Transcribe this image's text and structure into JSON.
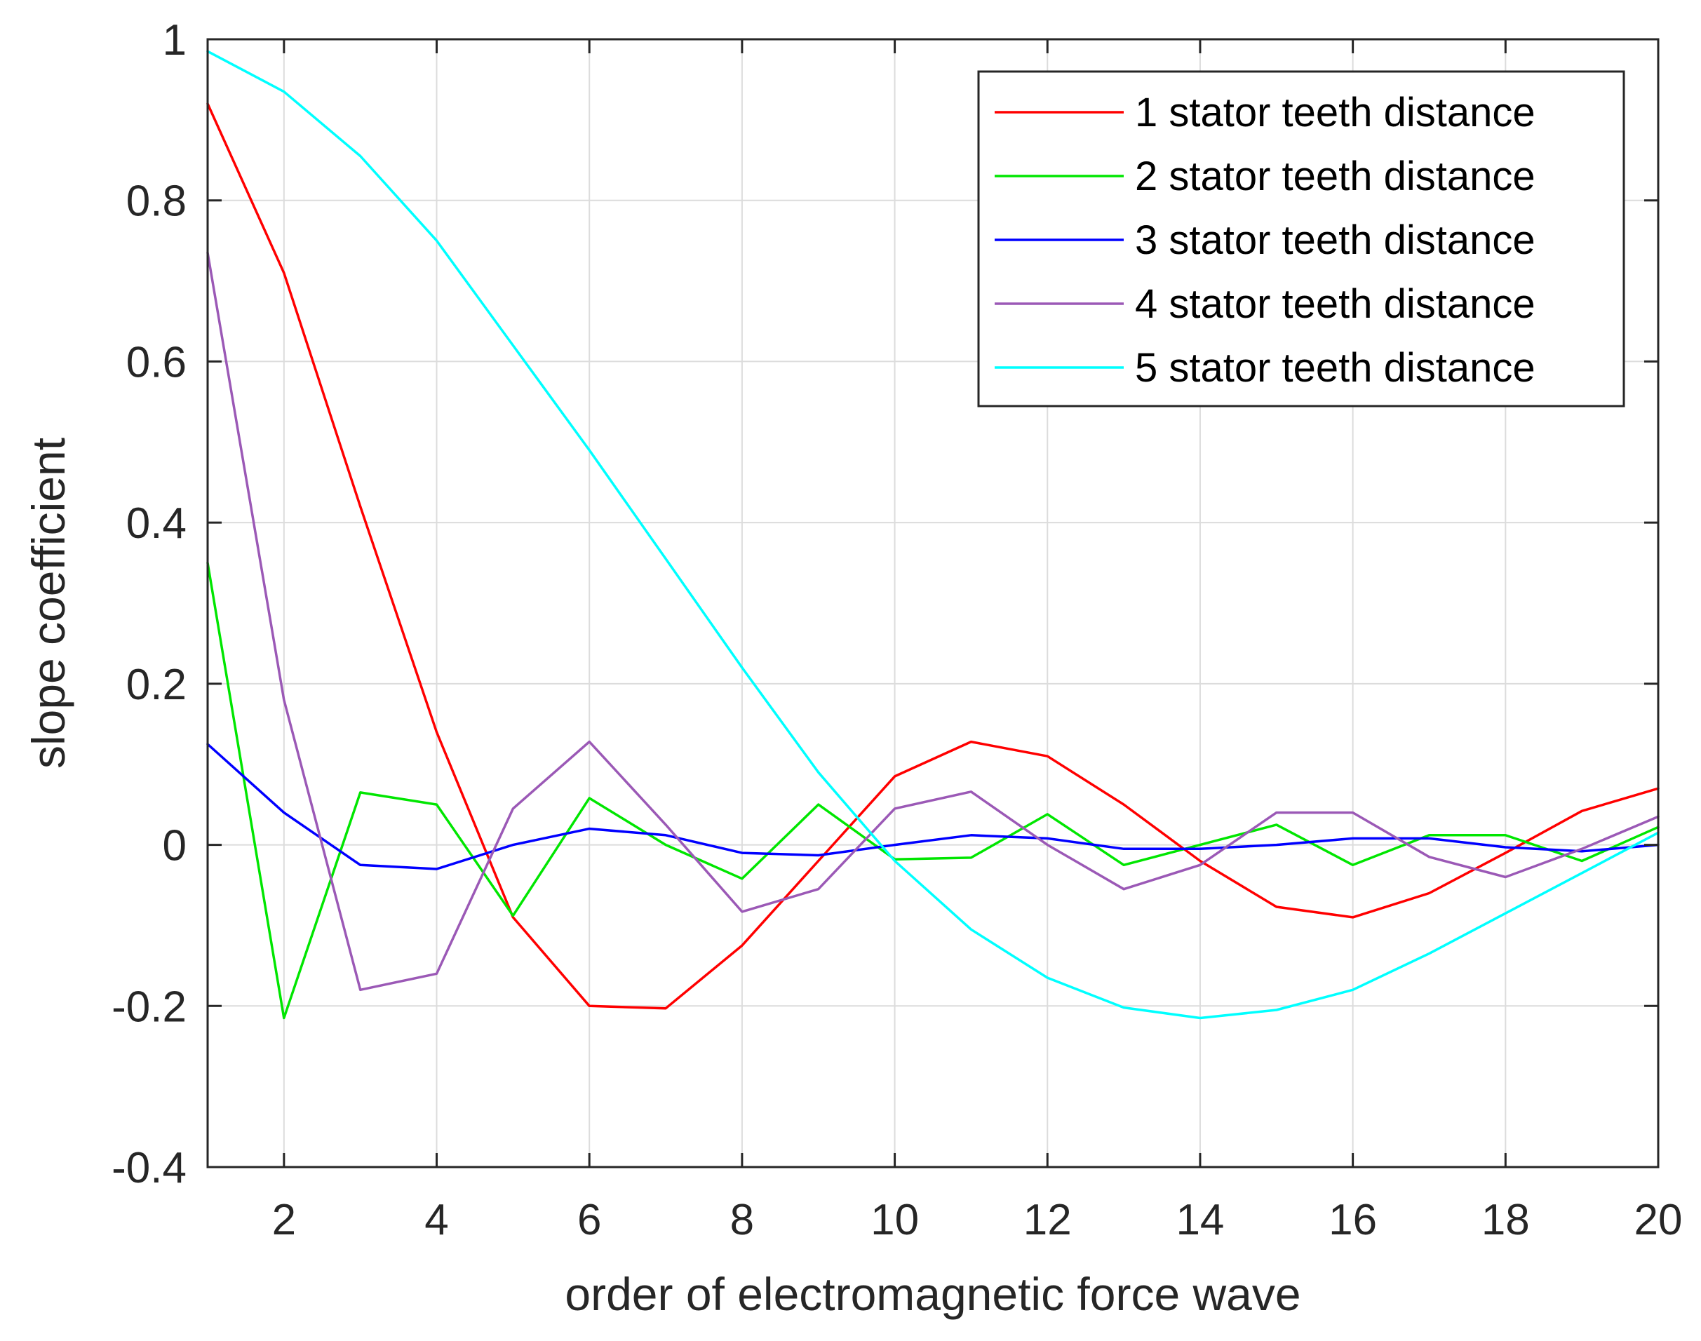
{
  "chart_data": {
    "type": "line",
    "title": "",
    "xlabel": "order of electromagnetic force wave",
    "ylabel": "slope coefficient",
    "xlim": [
      1,
      20
    ],
    "ylim": [
      -0.4,
      1
    ],
    "grid": true,
    "legend_position": "top-right",
    "xticks": [
      2,
      4,
      6,
      8,
      10,
      12,
      14,
      16,
      18,
      20
    ],
    "xtick_labels": [
      "2",
      "4",
      "6",
      "8",
      "10",
      "12",
      "14",
      "16",
      "18",
      "20"
    ],
    "yticks": [
      -0.4,
      -0.2,
      0,
      0.2,
      0.4,
      0.6,
      0.8,
      1
    ],
    "ytick_labels": [
      "-0.4",
      "-0.2",
      "0",
      "0.2",
      "0.4",
      "0.6",
      "0.8",
      "1"
    ],
    "x": [
      1,
      2,
      3,
      4,
      5,
      6,
      7,
      8,
      9,
      10,
      11,
      12,
      13,
      14,
      15,
      16,
      17,
      18,
      19,
      20
    ],
    "series": [
      {
        "name": "1 stator teeth distance",
        "color": "#ff0000",
        "values": [
          0.92,
          0.71,
          0.42,
          0.14,
          -0.09,
          -0.2,
          -0.203,
          -0.125,
          -0.02,
          0.085,
          0.128,
          0.11,
          0.05,
          -0.02,
          -0.077,
          -0.09,
          -0.06,
          -0.01,
          0.042,
          0.07
        ]
      },
      {
        "name": "2 stator teeth distance",
        "color": "#00e600",
        "values": [
          0.35,
          -0.215,
          0.065,
          0.05,
          -0.088,
          0.058,
          0.0,
          -0.042,
          0.05,
          -0.018,
          -0.016,
          0.038,
          -0.025,
          0.0,
          0.025,
          -0.025,
          0.012,
          0.012,
          -0.02,
          0.022
        ]
      },
      {
        "name": "3 stator teeth distance",
        "color": "#0000ff",
        "values": [
          0.125,
          0.04,
          -0.025,
          -0.03,
          0.0,
          0.02,
          0.012,
          -0.01,
          -0.013,
          0.0,
          0.012,
          0.008,
          -0.005,
          -0.005,
          0.0,
          0.008,
          0.008,
          -0.003,
          -0.008,
          0.0
        ]
      },
      {
        "name": "4 stator teeth distance",
        "color": "#9b59b6",
        "values": [
          0.735,
          0.18,
          -0.18,
          -0.16,
          0.045,
          0.128,
          0.025,
          -0.083,
          -0.055,
          0.045,
          0.066,
          0.0,
          -0.055,
          -0.025,
          0.04,
          0.04,
          -0.015,
          -0.04,
          -0.005,
          0.035
        ]
      },
      {
        "name": "5 stator teeth distance",
        "color": "#00ffff",
        "values": [
          0.985,
          0.935,
          0.855,
          0.75,
          0.62,
          0.49,
          0.355,
          0.22,
          0.09,
          -0.02,
          -0.105,
          -0.165,
          -0.202,
          -0.215,
          -0.205,
          -0.18,
          -0.135,
          -0.085,
          -0.035,
          0.015
        ]
      }
    ]
  }
}
